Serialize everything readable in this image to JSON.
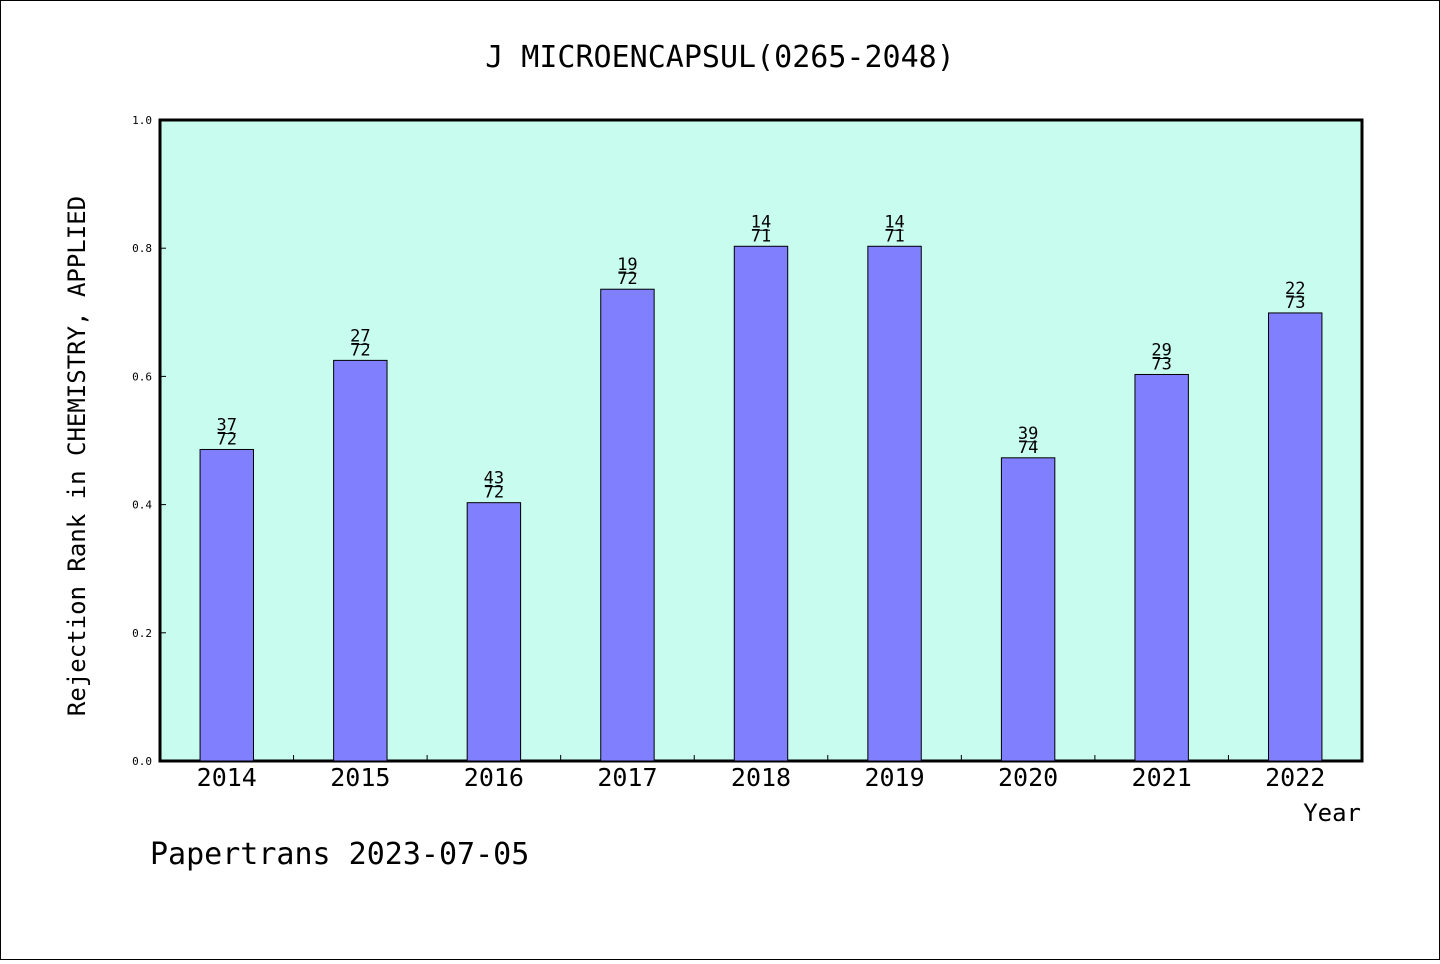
{
  "chart_data": {
    "type": "bar",
    "title": "J MICROENCAPSUL(0265-2048)",
    "xlabel": "Year",
    "ylabel": "Rejection Rank in CHEMISTRY, APPLIED",
    "ylim": [
      0,
      1.0
    ],
    "yticks": [
      "0.0",
      "0.2",
      "0.4",
      "0.6",
      "0.8",
      "1.0"
    ],
    "grid": false,
    "categories": [
      "2014",
      "2015",
      "2016",
      "2017",
      "2018",
      "2019",
      "2020",
      "2021",
      "2022"
    ],
    "values": [
      0.486,
      0.625,
      0.403,
      0.736,
      0.803,
      0.803,
      0.473,
      0.603,
      0.699
    ],
    "labels": [
      {
        "rank": "37",
        "total": "72"
      },
      {
        "rank": "27",
        "total": "72"
      },
      {
        "rank": "43",
        "total": "72"
      },
      {
        "rank": "19",
        "total": "72"
      },
      {
        "rank": "14",
        "total": "71"
      },
      {
        "rank": "14",
        "total": "71"
      },
      {
        "rank": "39",
        "total": "74"
      },
      {
        "rank": "29",
        "total": "73"
      },
      {
        "rank": "22",
        "total": "73"
      }
    ],
    "colors": {
      "plot_bg": "#c8fcee",
      "bar": "#8080ff",
      "bar_stroke": "#000000"
    }
  },
  "footer": {
    "text": "Papertrans 2023-07-05"
  }
}
